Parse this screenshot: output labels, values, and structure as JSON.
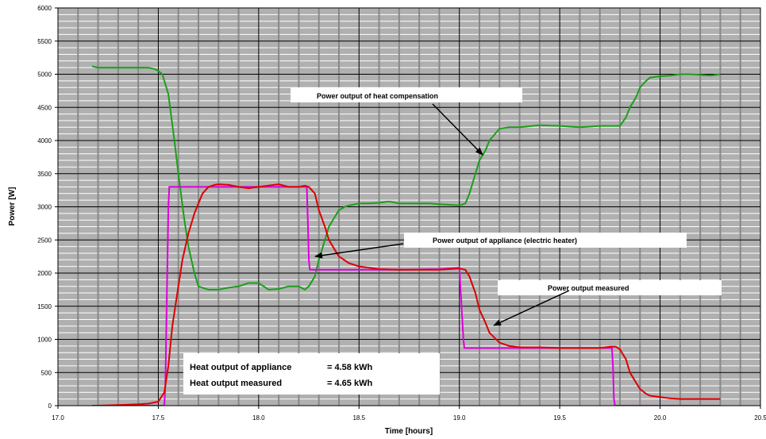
{
  "chart_data": {
    "type": "line",
    "xlabel": "Time [hours]",
    "ylabel": "Power [W]",
    "xlim": [
      17.0,
      20.5
    ],
    "ylim": [
      0,
      6000
    ],
    "xticks": [
      "17.0",
      "17.5",
      "18.0",
      "18.5",
      "19.0",
      "19.5",
      "20.0",
      "20.5"
    ],
    "yticks": [
      "0",
      "500",
      "1000",
      "1500",
      "2000",
      "2500",
      "3000",
      "3500",
      "4000",
      "4500",
      "5000",
      "5500",
      "6000"
    ],
    "grid": true,
    "plot_background": "#b0b0b0",
    "series": [
      {
        "color": "#1aa01a",
        "x": [
          17.17,
          17.2,
          17.3,
          17.4,
          17.45,
          17.48,
          17.5,
          17.52,
          17.55,
          17.58,
          17.6,
          17.63,
          17.65,
          17.68,
          17.7,
          17.75,
          17.8,
          17.85,
          17.9,
          17.95,
          18.0,
          18.05,
          18.1,
          18.15,
          18.2,
          18.23,
          18.25,
          18.28,
          18.3,
          18.33,
          18.35,
          18.38,
          18.4,
          18.43,
          18.45,
          18.5,
          18.55,
          18.6,
          18.65,
          18.7,
          18.75,
          18.8,
          18.85,
          18.9,
          18.95,
          19.0,
          19.03,
          19.05,
          19.08,
          19.1,
          19.13,
          19.15,
          19.2,
          19.25,
          19.3,
          19.4,
          19.5,
          19.6,
          19.7,
          19.75,
          19.8,
          19.83,
          19.85,
          19.88,
          19.9,
          19.93,
          19.95,
          20.0,
          20.05,
          20.1,
          20.15,
          20.2,
          20.25,
          20.3
        ],
        "values": [
          5120,
          5100,
          5100,
          5100,
          5100,
          5080,
          5050,
          5000,
          4700,
          4000,
          3500,
          2800,
          2400,
          2000,
          1800,
          1750,
          1750,
          1780,
          1800,
          1850,
          1850,
          1750,
          1760,
          1800,
          1800,
          1750,
          1800,
          1950,
          2200,
          2500,
          2700,
          2850,
          2950,
          3000,
          3020,
          3050,
          3050,
          3060,
          3080,
          3050,
          3050,
          3050,
          3050,
          3040,
          3030,
          3020,
          3050,
          3200,
          3500,
          3700,
          3850,
          4000,
          4180,
          4200,
          4200,
          4230,
          4220,
          4200,
          4220,
          4220,
          4220,
          4350,
          4500,
          4650,
          4800,
          4900,
          4950,
          4970,
          4980,
          5000,
          5000,
          4990,
          4980,
          5000
        ]
      },
      {
        "color": "#dd00dd",
        "x": [
          17.17,
          17.53,
          17.535,
          17.55,
          17.555,
          18.24,
          18.245,
          18.25,
          18.255,
          18.5,
          18.7,
          18.9,
          19.0,
          19.005,
          19.02,
          19.025,
          19.5,
          19.76,
          19.765,
          19.77,
          19.775,
          20.3
        ],
        "values": [
          0,
          0,
          300,
          3000,
          3300,
          3300,
          2800,
          2200,
          2050,
          2050,
          2050,
          2060,
          2080,
          1800,
          1000,
          870,
          870,
          870,
          600,
          100,
          0,
          0
        ]
      },
      {
        "color": "#dd0000",
        "x": [
          17.17,
          17.2,
          17.3,
          17.4,
          17.45,
          17.5,
          17.53,
          17.55,
          17.57,
          17.6,
          17.62,
          17.65,
          17.68,
          17.7,
          17.72,
          17.75,
          17.78,
          17.8,
          17.85,
          17.9,
          17.95,
          18.0,
          18.05,
          18.1,
          18.15,
          18.2,
          18.23,
          18.25,
          18.28,
          18.3,
          18.33,
          18.35,
          18.38,
          18.4,
          18.45,
          18.5,
          18.55,
          18.6,
          18.7,
          18.8,
          18.9,
          19.0,
          19.03,
          19.05,
          19.08,
          19.1,
          19.13,
          19.15,
          19.2,
          19.25,
          19.3,
          19.4,
          19.5,
          19.6,
          19.7,
          19.75,
          19.78,
          19.8,
          19.83,
          19.85,
          19.88,
          19.9,
          19.93,
          19.95,
          20.0,
          20.05,
          20.1,
          20.15,
          20.2,
          20.25,
          20.3
        ],
        "values": [
          0,
          0,
          10,
          20,
          30,
          60,
          200,
          600,
          1200,
          1800,
          2200,
          2600,
          2900,
          3050,
          3200,
          3300,
          3330,
          3340,
          3330,
          3300,
          3280,
          3300,
          3320,
          3340,
          3300,
          3300,
          3320,
          3300,
          3200,
          2950,
          2700,
          2500,
          2350,
          2250,
          2150,
          2100,
          2080,
          2060,
          2050,
          2050,
          2050,
          2070,
          2050,
          1950,
          1700,
          1450,
          1250,
          1100,
          950,
          900,
          880,
          880,
          870,
          870,
          870,
          890,
          890,
          850,
          700,
          500,
          350,
          250,
          180,
          150,
          130,
          110,
          100,
          100,
          100,
          100,
          100
        ]
      }
    ],
    "annotations": [
      "Power output of heat compensation",
      "Power output of  appliance (electric heater)",
      "Power output measured"
    ],
    "info_box": {
      "line1_label": "Heat output of appliance",
      "line1_value": "=  4.58 kWh",
      "line2_label": "Heat output measured",
      "line2_value": "=  4.65 kWh"
    }
  }
}
